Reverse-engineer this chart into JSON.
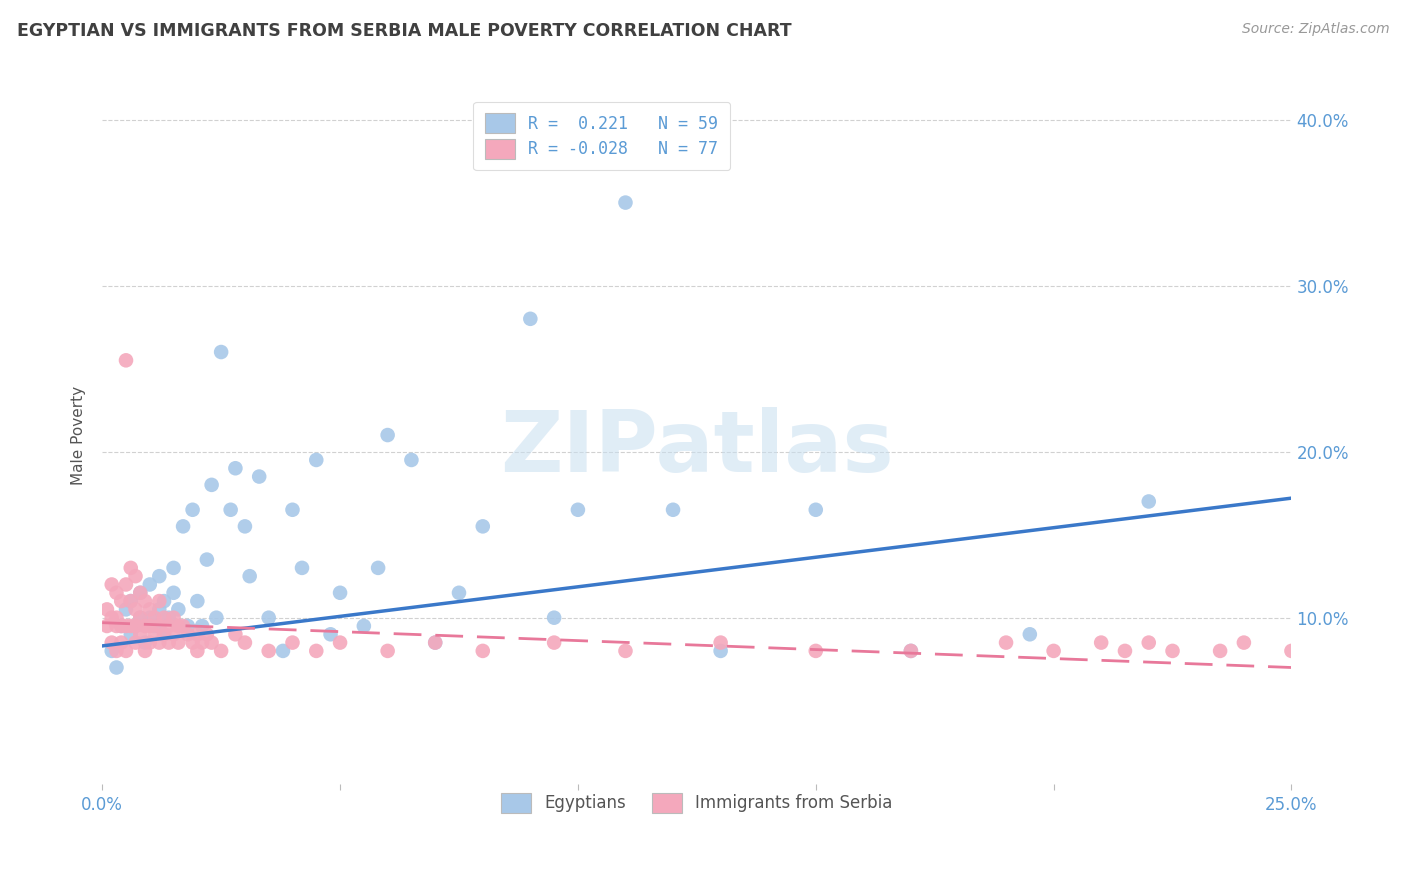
{
  "title": "EGYPTIAN VS IMMIGRANTS FROM SERBIA MALE POVERTY CORRELATION CHART",
  "source": "Source: ZipAtlas.com",
  "ylabel": "Male Poverty",
  "watermark": "ZIPatlas",
  "xlim": [
    0.0,
    0.25
  ],
  "ylim": [
    0.0,
    0.42
  ],
  "xtick_vals": [
    0.0,
    0.05,
    0.1,
    0.15,
    0.2,
    0.25
  ],
  "xtick_labels": [
    "0.0%",
    "",
    "",
    "",
    "",
    "25.0%"
  ],
  "ytick_vals": [
    0.1,
    0.2,
    0.3,
    0.4
  ],
  "ytick_labels": [
    "10.0%",
    "20.0%",
    "30.0%",
    "40.0%"
  ],
  "blue_color": "#A8C8E8",
  "pink_color": "#F4A8BC",
  "blue_line_color": "#3A78C9",
  "pink_line_color": "#E8789A",
  "legend_R1": "R =  0.221",
  "legend_N1": "N = 59",
  "legend_R2": "R = -0.028",
  "legend_N2": "N = 77",
  "label_egyptians": "Egyptians",
  "label_serbia": "Immigrants from Serbia",
  "title_color": "#404040",
  "axis_color": "#5B9BD5",
  "grid_color": "#CCCCCC",
  "background_color": "#FFFFFF",
  "blue_scatter_x": [
    0.002,
    0.003,
    0.004,
    0.005,
    0.006,
    0.006,
    0.007,
    0.008,
    0.008,
    0.009,
    0.01,
    0.01,
    0.011,
    0.012,
    0.012,
    0.013,
    0.013,
    0.014,
    0.015,
    0.015,
    0.016,
    0.017,
    0.018,
    0.019,
    0.02,
    0.021,
    0.022,
    0.023,
    0.024,
    0.025,
    0.027,
    0.028,
    0.03,
    0.031,
    0.033,
    0.035,
    0.038,
    0.04,
    0.042,
    0.045,
    0.048,
    0.05,
    0.055,
    0.058,
    0.06,
    0.065,
    0.07,
    0.075,
    0.08,
    0.09,
    0.095,
    0.1,
    0.11,
    0.12,
    0.13,
    0.15,
    0.17,
    0.195,
    0.22
  ],
  "blue_scatter_y": [
    0.08,
    0.07,
    0.095,
    0.105,
    0.09,
    0.11,
    0.095,
    0.1,
    0.115,
    0.085,
    0.1,
    0.12,
    0.095,
    0.105,
    0.125,
    0.09,
    0.11,
    0.1,
    0.115,
    0.13,
    0.105,
    0.155,
    0.095,
    0.165,
    0.11,
    0.095,
    0.135,
    0.18,
    0.1,
    0.26,
    0.165,
    0.19,
    0.155,
    0.125,
    0.185,
    0.1,
    0.08,
    0.165,
    0.13,
    0.195,
    0.09,
    0.115,
    0.095,
    0.13,
    0.21,
    0.195,
    0.085,
    0.115,
    0.155,
    0.28,
    0.1,
    0.165,
    0.35,
    0.165,
    0.08,
    0.165,
    0.08,
    0.09,
    0.17
  ],
  "pink_scatter_x": [
    0.001,
    0.001,
    0.002,
    0.002,
    0.002,
    0.003,
    0.003,
    0.003,
    0.003,
    0.004,
    0.004,
    0.004,
    0.005,
    0.005,
    0.005,
    0.005,
    0.006,
    0.006,
    0.006,
    0.007,
    0.007,
    0.007,
    0.007,
    0.008,
    0.008,
    0.008,
    0.009,
    0.009,
    0.009,
    0.01,
    0.01,
    0.01,
    0.011,
    0.011,
    0.012,
    0.012,
    0.012,
    0.013,
    0.013,
    0.014,
    0.014,
    0.015,
    0.015,
    0.016,
    0.016,
    0.017,
    0.018,
    0.019,
    0.02,
    0.02,
    0.021,
    0.022,
    0.023,
    0.025,
    0.028,
    0.03,
    0.035,
    0.04,
    0.045,
    0.05,
    0.06,
    0.07,
    0.08,
    0.095,
    0.11,
    0.13,
    0.15,
    0.17,
    0.19,
    0.2,
    0.21,
    0.215,
    0.22,
    0.225,
    0.235,
    0.24,
    0.25
  ],
  "pink_scatter_y": [
    0.105,
    0.095,
    0.12,
    0.1,
    0.085,
    0.1,
    0.095,
    0.115,
    0.08,
    0.095,
    0.11,
    0.085,
    0.255,
    0.12,
    0.095,
    0.08,
    0.13,
    0.11,
    0.095,
    0.125,
    0.105,
    0.095,
    0.085,
    0.115,
    0.1,
    0.09,
    0.11,
    0.095,
    0.08,
    0.105,
    0.095,
    0.085,
    0.1,
    0.09,
    0.11,
    0.095,
    0.085,
    0.1,
    0.09,
    0.095,
    0.085,
    0.1,
    0.09,
    0.095,
    0.085,
    0.095,
    0.09,
    0.085,
    0.09,
    0.08,
    0.085,
    0.09,
    0.085,
    0.08,
    0.09,
    0.085,
    0.08,
    0.085,
    0.08,
    0.085,
    0.08,
    0.085,
    0.08,
    0.085,
    0.08,
    0.085,
    0.08,
    0.08,
    0.085,
    0.08,
    0.085,
    0.08,
    0.085,
    0.08,
    0.08,
    0.085,
    0.08
  ],
  "blue_trendline_x": [
    0.0,
    0.25
  ],
  "blue_trendline_y": [
    0.083,
    0.172
  ],
  "pink_trendline_x": [
    0.0,
    0.25
  ],
  "pink_trendline_y": [
    0.097,
    0.07
  ]
}
